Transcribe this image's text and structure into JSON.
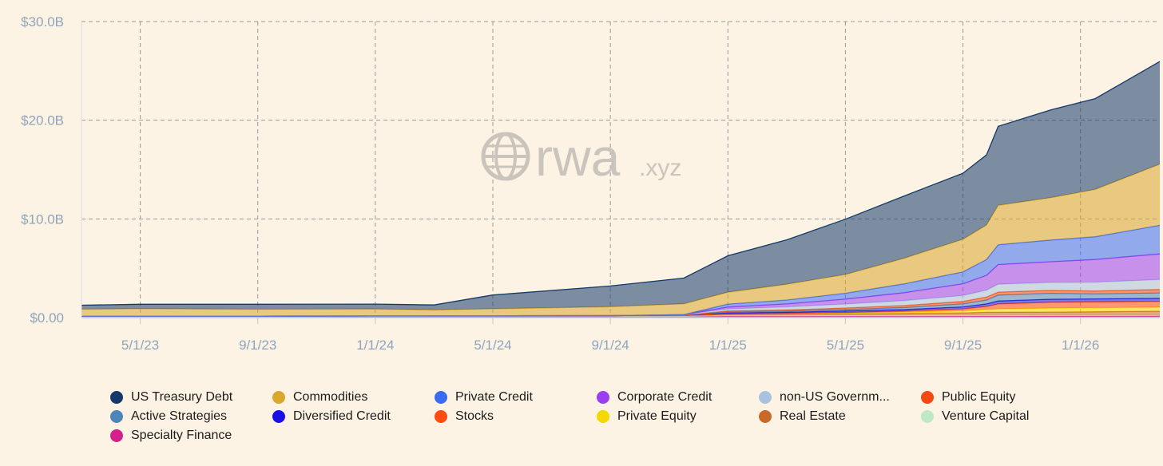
{
  "chart_data": {
    "type": "area",
    "stacked": true,
    "title": "",
    "xlabel": "",
    "ylabel": "",
    "ylim": [
      0,
      30
    ],
    "y_unit": "$B",
    "y_ticks": [
      "$0.00",
      "$10.0B",
      "$20.0B",
      "$30.0B"
    ],
    "y_tick_values": [
      0,
      10,
      20,
      30
    ],
    "x_ticks": [
      "5/1/23",
      "9/1/23",
      "1/1/24",
      "5/1/24",
      "9/1/24",
      "1/1/25",
      "5/1/25",
      "9/1/25",
      "1/1/26"
    ],
    "x_tick_months": [
      4,
      8,
      12,
      16,
      20,
      24,
      28,
      32,
      36
    ],
    "x_range_months": [
      2,
      38.7
    ],
    "grid": true,
    "legend_position": "bottom",
    "watermark": "rwa.xyz",
    "x_months": [
      2,
      4,
      8,
      12,
      14,
      16,
      20,
      22.5,
      24,
      26,
      28,
      30,
      32,
      32.8,
      33.2,
      35,
      36.5,
      38.7
    ],
    "series": [
      {
        "name": "Specialty Finance",
        "color": "#d4208a",
        "values": [
          0,
          0,
          0,
          0.1,
          0.1,
          0.1,
          0.1,
          0.1,
          0.12,
          0.12,
          0.12,
          0.12,
          0.13,
          0.13,
          0.13,
          0.14,
          0.14,
          0.15
        ]
      },
      {
        "name": "Venture Capital",
        "color": "#bfe8c4",
        "values": [
          0.15,
          0.15,
          0.15,
          0.05,
          0.05,
          0.05,
          0.05,
          0.05,
          0.1,
          0.1,
          0.1,
          0.1,
          0.1,
          0.1,
          0.1,
          0.1,
          0.1,
          0.1
        ]
      },
      {
        "name": "Real Estate",
        "color": "#c8692a",
        "values": [
          0,
          0,
          0,
          0.02,
          0.03,
          0.04,
          0.05,
          0.08,
          0.1,
          0.12,
          0.15,
          0.2,
          0.25,
          0.3,
          0.3,
          0.32,
          0.35,
          0.4
        ]
      },
      {
        "name": "Private Equity",
        "color": "#f5d800",
        "values": [
          0,
          0,
          0,
          0,
          0,
          0,
          0,
          0.02,
          0.05,
          0.08,
          0.1,
          0.15,
          0.2,
          0.3,
          0.35,
          0.4,
          0.4,
          0.4
        ]
      },
      {
        "name": "Stocks",
        "color": "#ff4a10",
        "values": [
          0,
          0,
          0,
          0,
          0,
          0,
          0,
          0,
          0,
          0.02,
          0.05,
          0.1,
          0.2,
          0.3,
          0.5,
          0.6,
          0.6,
          0.6
        ]
      },
      {
        "name": "Diversified Credit",
        "color": "#1a10e8",
        "values": [
          0,
          0,
          0,
          0,
          0,
          0,
          0,
          0,
          0.1,
          0.1,
          0.15,
          0.15,
          0.2,
          0.25,
          0.3,
          0.3,
          0.3,
          0.3
        ]
      },
      {
        "name": "Active Strategies",
        "color": "#4e86b8",
        "values": [
          0,
          0,
          0,
          0,
          0,
          0,
          0,
          0,
          0.1,
          0.12,
          0.15,
          0.2,
          0.3,
          0.4,
          0.6,
          0.6,
          0.5,
          0.55
        ]
      },
      {
        "name": "Public Equity",
        "color": "#f24a12",
        "values": [
          0,
          0,
          0,
          0,
          0,
          0,
          0,
          0,
          0.1,
          0.12,
          0.15,
          0.2,
          0.25,
          0.3,
          0.3,
          0.3,
          0.3,
          0.35
        ]
      },
      {
        "name": "non-US Government Debt",
        "color": "#a8c2e0",
        "values": [
          0,
          0,
          0,
          0,
          0,
          0,
          0,
          0.05,
          0.2,
          0.3,
          0.4,
          0.5,
          0.6,
          0.7,
          0.8,
          0.8,
          0.9,
          1.0
        ]
      },
      {
        "name": "Corporate Credit",
        "color": "#9a3ef0",
        "values": [
          0,
          0,
          0,
          0,
          0,
          0,
          0,
          0,
          0.2,
          0.3,
          0.5,
          0.8,
          1.2,
          1.5,
          2.0,
          2.1,
          2.3,
          2.6
        ]
      },
      {
        "name": "Private Credit",
        "color": "#3a6cf0",
        "values": [
          0,
          0,
          0,
          0,
          0,
          0,
          0,
          0,
          0.3,
          0.4,
          0.6,
          0.9,
          1.2,
          1.6,
          2.0,
          2.2,
          2.3,
          2.9
        ]
      },
      {
        "name": "Commodities",
        "color": "#d9a62e",
        "values": [
          0.7,
          0.75,
          0.7,
          0.7,
          0.6,
          0.7,
          0.9,
          1.1,
          1.2,
          1.6,
          1.9,
          2.6,
          3.3,
          3.5,
          4.0,
          4.3,
          4.8,
          6.2
        ]
      },
      {
        "name": "US Treasury Debt",
        "color": "#12396a",
        "values": [
          0.4,
          0.45,
          0.5,
          0.5,
          0.5,
          1.4,
          2.1,
          2.6,
          3.7,
          4.5,
          5.6,
          6.3,
          6.7,
          7.1,
          8.0,
          8.9,
          9.2,
          10.4
        ]
      }
    ]
  },
  "legend": {
    "items": [
      {
        "label": "US Treasury Debt",
        "color": "#12396a"
      },
      {
        "label": "Commodities",
        "color": "#d9a62e"
      },
      {
        "label": "Private Credit",
        "color": "#3a6cf0"
      },
      {
        "label": "Corporate Credit",
        "color": "#9a3ef0"
      },
      {
        "label": "non-US Governm...",
        "color": "#a8c2e0"
      },
      {
        "label": "Public Equity",
        "color": "#f24a12"
      },
      {
        "label": "Active Strategies",
        "color": "#4e86b8"
      },
      {
        "label": "Diversified Credit",
        "color": "#1a10e8"
      },
      {
        "label": "Stocks",
        "color": "#ff4a10"
      },
      {
        "label": "Private Equity",
        "color": "#f5d800"
      },
      {
        "label": "Real Estate",
        "color": "#c8692a"
      },
      {
        "label": "Venture Capital",
        "color": "#bfe8c4"
      },
      {
        "label": "Specialty Finance",
        "color": "#d4208a"
      }
    ]
  },
  "watermark": {
    "brand": "rwa",
    "suffix": ".xyz",
    "icon": "globe-icon"
  }
}
